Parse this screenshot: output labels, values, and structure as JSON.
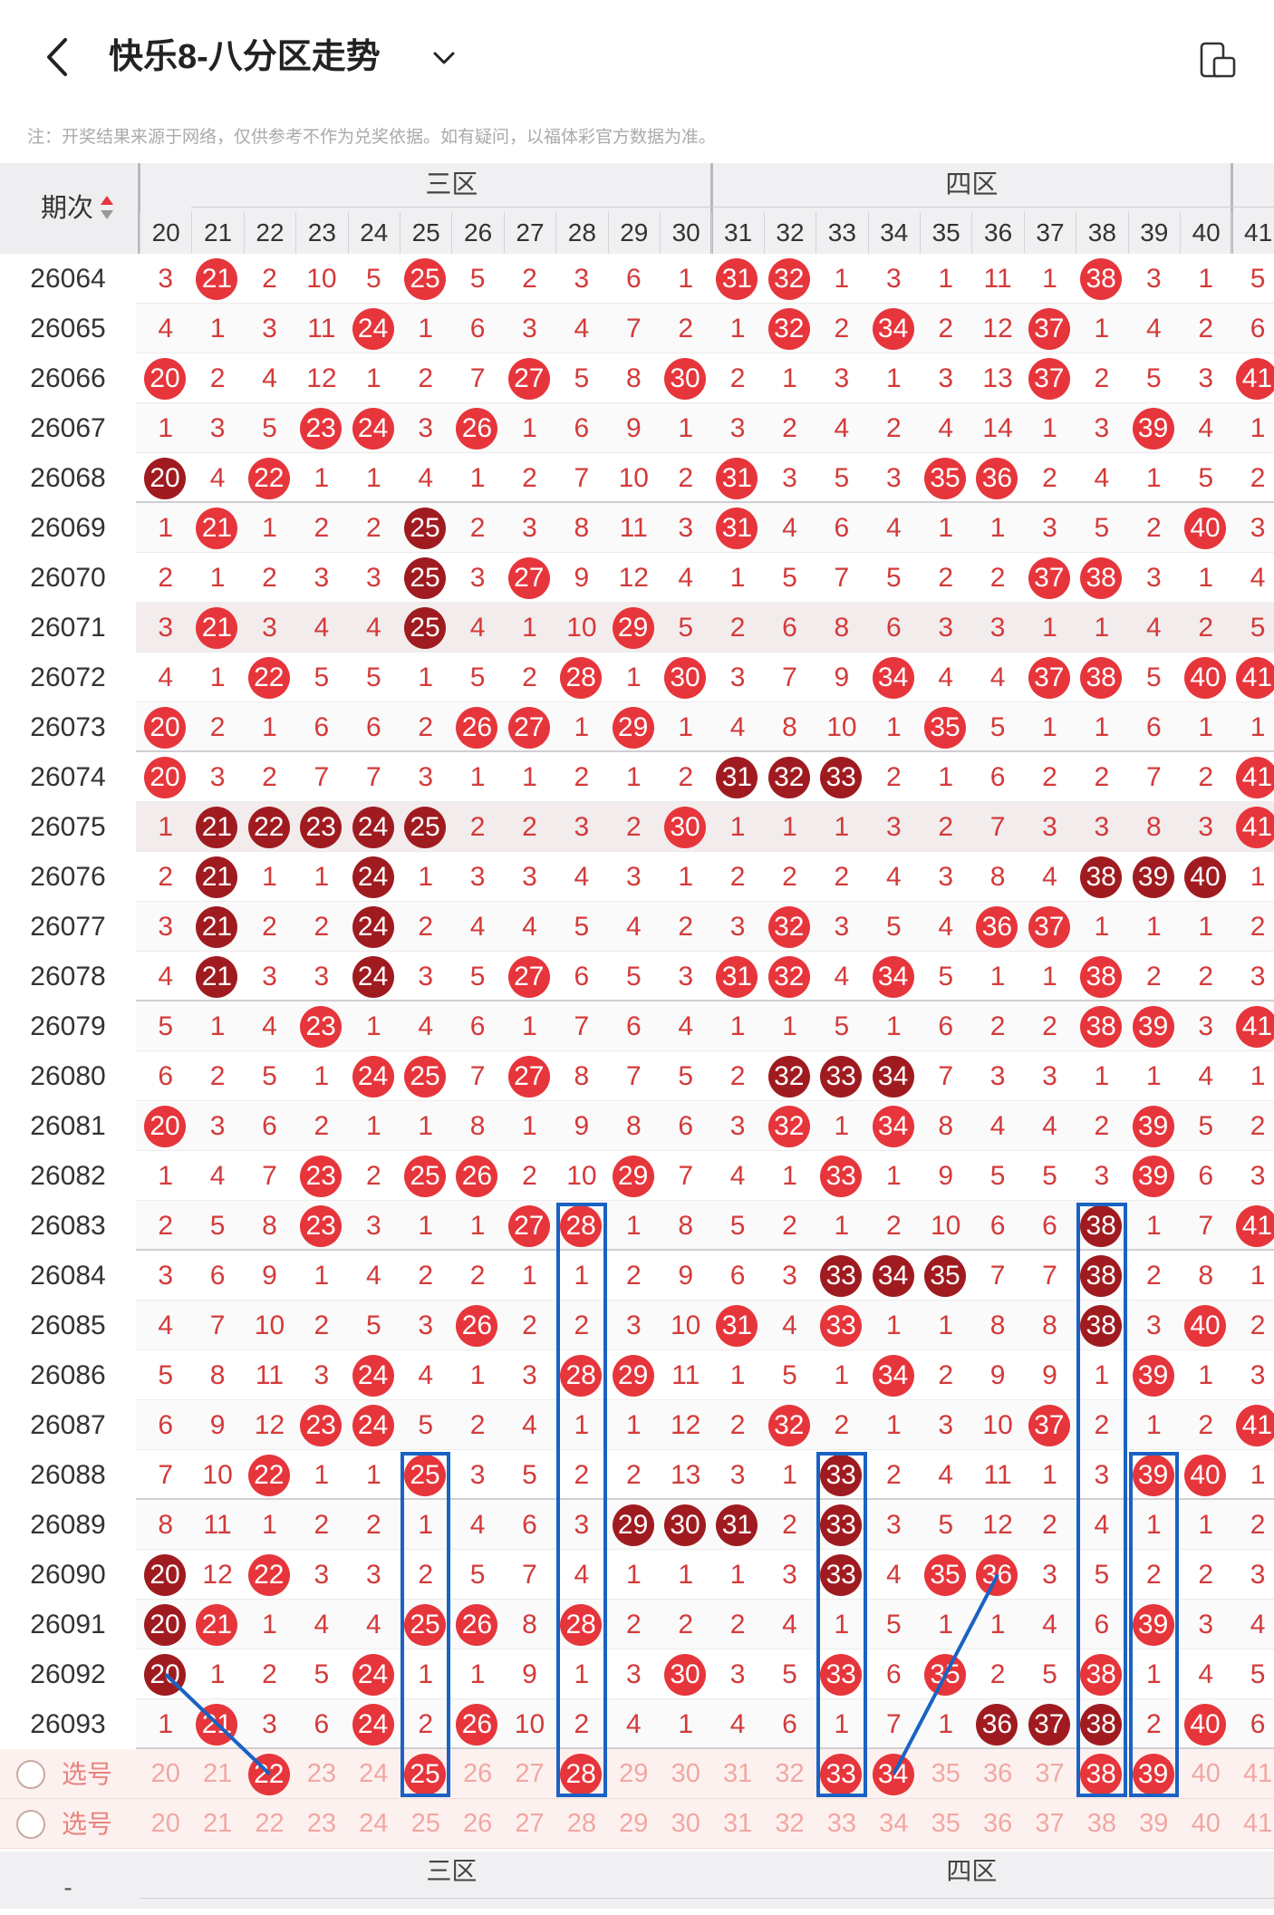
{
  "header": {
    "title": "快乐8-八分区走势",
    "note": "注：开奖结果来源于网络，仅供参考不作为兑奖依据。如有疑问，以福体彩官方数据为准。",
    "period_label": "期次"
  },
  "zones": [
    {
      "label": "三区",
      "first": 21,
      "last": 30
    },
    {
      "label": "四区",
      "first": 31,
      "last": 40
    }
  ],
  "columns": [
    20,
    21,
    22,
    23,
    24,
    25,
    26,
    27,
    28,
    29,
    30,
    31,
    32,
    33,
    34,
    35,
    36,
    37,
    38,
    39,
    40,
    41
  ],
  "colors": {
    "ball_red": "#e6353b",
    "ball_dark": "#9f1b20",
    "highlight_box": "#1a62c3",
    "number_text": "#d43a3a"
  },
  "rows": [
    {
      "period": "26064",
      "cells": [
        "3",
        "21",
        "2",
        "10",
        "5",
        "25",
        "5",
        "2",
        "3",
        "6",
        "1",
        "31",
        "32",
        "1",
        "3",
        "1",
        "11",
        "1",
        "38",
        "3",
        "1",
        "5"
      ],
      "balls": [
        1,
        5,
        11,
        12,
        18
      ],
      "dark": []
    },
    {
      "period": "26065",
      "cells": [
        "4",
        "1",
        "3",
        "11",
        "24",
        "1",
        "6",
        "3",
        "4",
        "7",
        "2",
        "1",
        "32",
        "2",
        "34",
        "2",
        "12",
        "37",
        "1",
        "4",
        "2",
        "6"
      ],
      "balls": [
        4,
        12,
        14,
        17
      ],
      "dark": []
    },
    {
      "period": "26066",
      "cells": [
        "20",
        "2",
        "4",
        "12",
        "1",
        "2",
        "7",
        "27",
        "5",
        "8",
        "30",
        "2",
        "1",
        "3",
        "1",
        "3",
        "13",
        "37",
        "2",
        "5",
        "3",
        "41"
      ],
      "balls": [
        0,
        7,
        10,
        17,
        21
      ],
      "dark": []
    },
    {
      "period": "26067",
      "cells": [
        "1",
        "3",
        "5",
        "23",
        "24",
        "3",
        "26",
        "1",
        "6",
        "9",
        "1",
        "3",
        "2",
        "4",
        "2",
        "4",
        "14",
        "1",
        "3",
        "39",
        "4",
        "1"
      ],
      "balls": [
        3,
        4,
        6,
        19
      ],
      "dark": []
    },
    {
      "period": "26068",
      "cells": [
        "20",
        "4",
        "22",
        "1",
        "1",
        "4",
        "1",
        "2",
        "7",
        "10",
        "2",
        "31",
        "3",
        "5",
        "3",
        "35",
        "36",
        "2",
        "4",
        "1",
        "5",
        "2"
      ],
      "balls": [
        0,
        2,
        11,
        15,
        16
      ],
      "dark": [
        0
      ]
    },
    {
      "period": "26069",
      "cells": [
        "1",
        "21",
        "1",
        "2",
        "2",
        "25",
        "2",
        "3",
        "8",
        "11",
        "3",
        "31",
        "4",
        "6",
        "4",
        "1",
        "1",
        "3",
        "5",
        "2",
        "40",
        "3"
      ],
      "balls": [
        1,
        5,
        11,
        20
      ],
      "dark": [
        5
      ]
    },
    {
      "period": "26070",
      "cells": [
        "2",
        "1",
        "2",
        "3",
        "3",
        "25",
        "3",
        "27",
        "9",
        "12",
        "4",
        "1",
        "5",
        "7",
        "5",
        "2",
        "2",
        "37",
        "38",
        "3",
        "1",
        "4"
      ],
      "balls": [
        5,
        7,
        17,
        18
      ],
      "dark": [
        5
      ]
    },
    {
      "period": "26071",
      "cells": [
        "3",
        "21",
        "3",
        "4",
        "4",
        "25",
        "4",
        "1",
        "10",
        "29",
        "5",
        "2",
        "6",
        "8",
        "6",
        "3",
        "3",
        "1",
        "1",
        "4",
        "2",
        "5"
      ],
      "balls": [
        1,
        5,
        9
      ],
      "dark": [
        5
      ],
      "shade": true
    },
    {
      "period": "26072",
      "cells": [
        "4",
        "1",
        "22",
        "5",
        "5",
        "1",
        "5",
        "2",
        "28",
        "1",
        "30",
        "3",
        "7",
        "9",
        "34",
        "4",
        "4",
        "37",
        "38",
        "5",
        "40",
        "41"
      ],
      "balls": [
        2,
        8,
        10,
        14,
        17,
        18,
        20,
        21
      ],
      "dark": []
    },
    {
      "period": "26073",
      "cells": [
        "20",
        "2",
        "1",
        "6",
        "6",
        "2",
        "26",
        "27",
        "1",
        "29",
        "1",
        "4",
        "8",
        "10",
        "1",
        "35",
        "5",
        "1",
        "1",
        "6",
        "1",
        "1"
      ],
      "balls": [
        0,
        6,
        7,
        9,
        15
      ],
      "dark": []
    },
    {
      "period": "26074",
      "cells": [
        "20",
        "3",
        "2",
        "7",
        "7",
        "3",
        "1",
        "1",
        "2",
        "1",
        "2",
        "31",
        "32",
        "33",
        "2",
        "1",
        "6",
        "2",
        "2",
        "7",
        "2",
        "41"
      ],
      "balls": [
        0,
        11,
        12,
        13,
        21
      ],
      "dark": [
        11,
        12,
        13
      ]
    },
    {
      "period": "26075",
      "cells": [
        "1",
        "21",
        "22",
        "23",
        "24",
        "25",
        "2",
        "2",
        "3",
        "2",
        "30",
        "1",
        "1",
        "1",
        "3",
        "2",
        "7",
        "3",
        "3",
        "8",
        "3",
        "41"
      ],
      "balls": [
        1,
        2,
        3,
        4,
        5,
        10,
        21
      ],
      "dark": [
        1,
        2,
        3,
        4,
        5
      ],
      "shade": true
    },
    {
      "period": "26076",
      "cells": [
        "2",
        "21",
        "1",
        "1",
        "24",
        "1",
        "3",
        "3",
        "4",
        "3",
        "1",
        "2",
        "2",
        "2",
        "4",
        "3",
        "8",
        "4",
        "38",
        "39",
        "40",
        "1"
      ],
      "balls": [
        1,
        4,
        18,
        19,
        20
      ],
      "dark": [
        1,
        4,
        18,
        19,
        20
      ]
    },
    {
      "period": "26077",
      "cells": [
        "3",
        "21",
        "2",
        "2",
        "24",
        "2",
        "4",
        "4",
        "5",
        "4",
        "2",
        "3",
        "32",
        "3",
        "5",
        "4",
        "36",
        "37",
        "1",
        "1",
        "1",
        "2"
      ],
      "balls": [
        1,
        4,
        12,
        16,
        17
      ],
      "dark": [
        1,
        4
      ]
    },
    {
      "period": "26078",
      "cells": [
        "4",
        "21",
        "3",
        "3",
        "24",
        "3",
        "5",
        "27",
        "6",
        "5",
        "3",
        "31",
        "32",
        "4",
        "34",
        "5",
        "1",
        "1",
        "38",
        "2",
        "2",
        "3"
      ],
      "balls": [
        1,
        4,
        7,
        11,
        12,
        14,
        18
      ],
      "dark": [
        1,
        4
      ]
    },
    {
      "period": "26079",
      "cells": [
        "5",
        "1",
        "4",
        "23",
        "1",
        "4",
        "6",
        "1",
        "7",
        "6",
        "4",
        "1",
        "1",
        "5",
        "1",
        "6",
        "2",
        "2",
        "38",
        "39",
        "3",
        "41"
      ],
      "balls": [
        3,
        18,
        19,
        21
      ],
      "dark": []
    },
    {
      "period": "26080",
      "cells": [
        "6",
        "2",
        "5",
        "1",
        "24",
        "25",
        "7",
        "27",
        "8",
        "7",
        "5",
        "2",
        "32",
        "33",
        "34",
        "7",
        "3",
        "3",
        "1",
        "1",
        "4",
        "1"
      ],
      "balls": [
        4,
        5,
        7,
        12,
        13,
        14
      ],
      "dark": [
        12,
        13,
        14
      ]
    },
    {
      "period": "26081",
      "cells": [
        "20",
        "3",
        "6",
        "2",
        "1",
        "1",
        "8",
        "1",
        "9",
        "8",
        "6",
        "3",
        "32",
        "1",
        "34",
        "8",
        "4",
        "4",
        "2",
        "39",
        "5",
        "2"
      ],
      "balls": [
        0,
        12,
        14,
        19
      ],
      "dark": []
    },
    {
      "period": "26082",
      "cells": [
        "1",
        "4",
        "7",
        "23",
        "2",
        "25",
        "26",
        "2",
        "10",
        "29",
        "7",
        "4",
        "1",
        "33",
        "1",
        "9",
        "5",
        "5",
        "3",
        "39",
        "6",
        "3"
      ],
      "balls": [
        3,
        5,
        6,
        9,
        13,
        19
      ],
      "dark": []
    },
    {
      "period": "26083",
      "cells": [
        "2",
        "5",
        "8",
        "23",
        "3",
        "1",
        "1",
        "27",
        "28",
        "1",
        "8",
        "5",
        "2",
        "1",
        "2",
        "10",
        "6",
        "6",
        "38",
        "1",
        "7",
        "41"
      ],
      "balls": [
        3,
        7,
        8,
        18,
        21
      ],
      "dark": [
        18
      ]
    },
    {
      "period": "26084",
      "cells": [
        "3",
        "6",
        "9",
        "1",
        "4",
        "2",
        "2",
        "1",
        "1",
        "2",
        "9",
        "6",
        "3",
        "33",
        "34",
        "35",
        "7",
        "7",
        "38",
        "2",
        "8",
        "1"
      ],
      "balls": [
        13,
        14,
        15,
        18
      ],
      "dark": [
        13,
        14,
        15,
        18
      ]
    },
    {
      "period": "26085",
      "cells": [
        "4",
        "7",
        "10",
        "2",
        "5",
        "3",
        "26",
        "2",
        "2",
        "3",
        "10",
        "31",
        "4",
        "33",
        "1",
        "1",
        "8",
        "8",
        "38",
        "3",
        "40",
        "2"
      ],
      "balls": [
        6,
        11,
        13,
        18,
        20
      ],
      "dark": [
        18
      ]
    },
    {
      "period": "26086",
      "cells": [
        "5",
        "8",
        "11",
        "3",
        "24",
        "4",
        "1",
        "3",
        "28",
        "29",
        "11",
        "1",
        "5",
        "1",
        "34",
        "2",
        "9",
        "9",
        "1",
        "39",
        "1",
        "3"
      ],
      "balls": [
        4,
        8,
        9,
        14,
        19
      ],
      "dark": []
    },
    {
      "period": "26087",
      "cells": [
        "6",
        "9",
        "12",
        "23",
        "24",
        "5",
        "2",
        "4",
        "1",
        "1",
        "12",
        "2",
        "32",
        "2",
        "1",
        "3",
        "10",
        "37",
        "2",
        "1",
        "2",
        "41"
      ],
      "balls": [
        3,
        4,
        12,
        17,
        21
      ],
      "dark": []
    },
    {
      "period": "26088",
      "cells": [
        "7",
        "10",
        "22",
        "1",
        "1",
        "25",
        "3",
        "5",
        "2",
        "2",
        "13",
        "3",
        "1",
        "33",
        "2",
        "4",
        "11",
        "1",
        "3",
        "39",
        "40",
        "1"
      ],
      "balls": [
        2,
        5,
        13,
        19,
        20
      ],
      "dark": [
        13
      ]
    },
    {
      "period": "26089",
      "cells": [
        "8",
        "11",
        "1",
        "2",
        "2",
        "1",
        "4",
        "6",
        "3",
        "29",
        "30",
        "31",
        "2",
        "33",
        "3",
        "5",
        "12",
        "2",
        "4",
        "1",
        "1",
        "2"
      ],
      "balls": [
        9,
        10,
        11,
        13
      ],
      "dark": [
        9,
        10,
        11,
        13
      ]
    },
    {
      "period": "26090",
      "cells": [
        "20",
        "12",
        "22",
        "3",
        "3",
        "2",
        "5",
        "7",
        "4",
        "1",
        "1",
        "1",
        "3",
        "33",
        "4",
        "35",
        "36",
        "3",
        "5",
        "2",
        "2",
        "3"
      ],
      "balls": [
        0,
        2,
        13,
        15,
        16
      ],
      "dark": [
        0,
        13
      ]
    },
    {
      "period": "26091",
      "cells": [
        "20",
        "21",
        "1",
        "4",
        "4",
        "25",
        "26",
        "8",
        "28",
        "2",
        "2",
        "2",
        "4",
        "1",
        "5",
        "1",
        "1",
        "4",
        "6",
        "39",
        "3",
        "4"
      ],
      "balls": [
        0,
        1,
        5,
        6,
        8,
        19
      ],
      "dark": [
        0
      ]
    },
    {
      "period": "26092",
      "cells": [
        "20",
        "1",
        "2",
        "5",
        "24",
        "1",
        "1",
        "9",
        "1",
        "3",
        "30",
        "3",
        "5",
        "33",
        "6",
        "35",
        "2",
        "5",
        "38",
        "1",
        "4",
        "5"
      ],
      "balls": [
        0,
        4,
        10,
        13,
        15,
        18
      ],
      "dark": [
        0
      ]
    },
    {
      "period": "26093",
      "cells": [
        "1",
        "21",
        "3",
        "6",
        "24",
        "2",
        "26",
        "10",
        "2",
        "4",
        "1",
        "4",
        "6",
        "1",
        "7",
        "1",
        "36",
        "37",
        "38",
        "2",
        "40",
        "6"
      ],
      "balls": [
        1,
        4,
        6,
        16,
        17,
        18,
        20
      ],
      "dark": [
        16,
        17,
        18
      ]
    }
  ],
  "select_rows": [
    {
      "label": "选号",
      "cells": [
        "20",
        "21",
        "22",
        "23",
        "24",
        "25",
        "26",
        "27",
        "28",
        "29",
        "30",
        "31",
        "32",
        "33",
        "34",
        "35",
        "36",
        "37",
        "38",
        "39",
        "40",
        "41"
      ],
      "balls": [
        2,
        5,
        8,
        13,
        14,
        18,
        19
      ]
    },
    {
      "label": "选号",
      "cells": [
        "20",
        "21",
        "22",
        "23",
        "24",
        "25",
        "26",
        "27",
        "28",
        "29",
        "30",
        "31",
        "32",
        "33",
        "34",
        "35",
        "36",
        "37",
        "38",
        "39",
        "40",
        "41"
      ],
      "balls": []
    }
  ],
  "footer": {
    "period_label": "-",
    "columns_partial": [
      "20",
      "21",
      "22",
      "23",
      "24",
      "25",
      "26",
      "27",
      "28",
      "29",
      "30",
      "31",
      "32",
      "33",
      "34",
      "35",
      "36",
      "37",
      "38",
      "39",
      "40",
      "41"
    ]
  },
  "icons": {
    "back": "back-chevron-icon",
    "dropdown": "chevron-down-icon",
    "device": "phone-rotate-icon",
    "sort": "sort-arrows-icon",
    "radio": "radio-circle-icon"
  }
}
